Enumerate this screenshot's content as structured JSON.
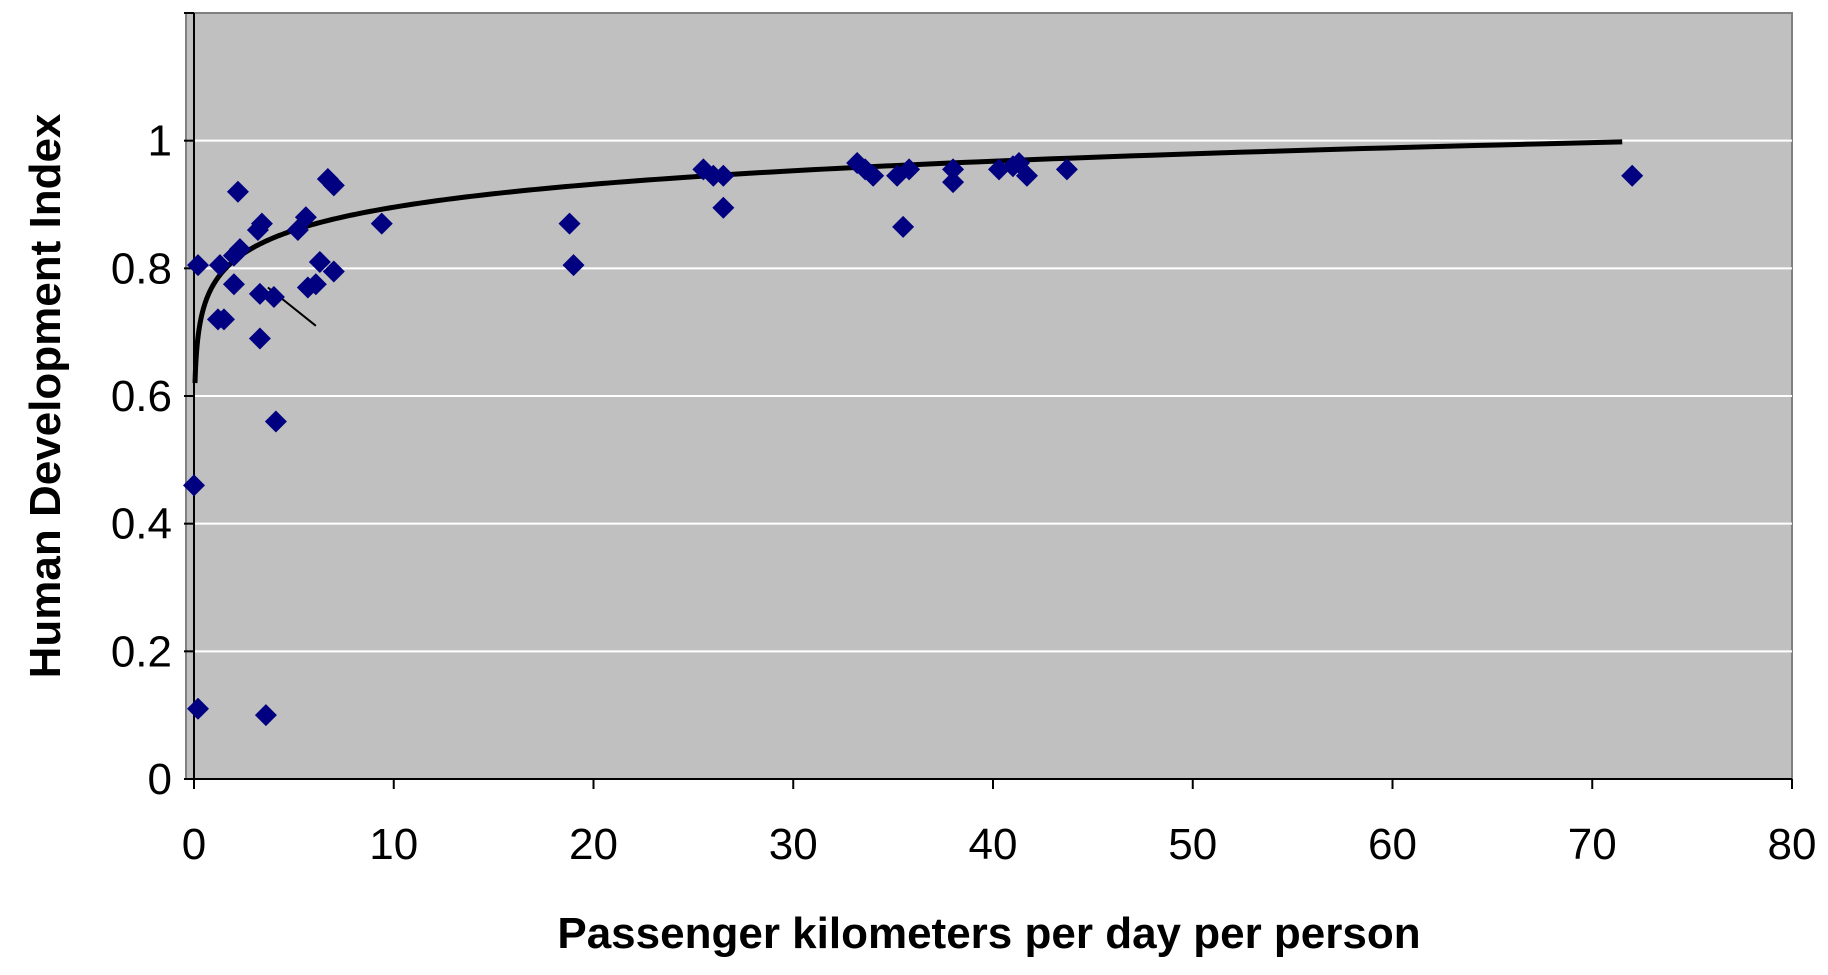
{
  "chart_data": {
    "type": "scatter",
    "title": "",
    "xlabel": "Passenger kilometers per day per person",
    "ylabel": "Human Development Index",
    "xlim": [
      0,
      80
    ],
    "ylim": [
      0,
      1.2
    ],
    "x_ticks": [
      0,
      10,
      20,
      30,
      40,
      50,
      60,
      70,
      80
    ],
    "y_ticks": [
      0,
      0.2,
      0.4,
      0.6,
      0.8,
      1
    ],
    "x_tick_labels": [
      "0",
      "10",
      "20",
      "30",
      "40",
      "50",
      "60",
      "70",
      "80"
    ],
    "y_tick_labels": [
      "0",
      "0.2",
      "0.4",
      "0.6",
      "0.8",
      "1"
    ],
    "grid": "horizontal",
    "legend": "none",
    "colors": {
      "plot_background": "#c0c0c0",
      "marker": "#000080",
      "trend_line": "#000000",
      "grid": "#ffffff"
    },
    "series": [
      {
        "marker": "diamond",
        "points": [
          [
            0.0,
            0.46
          ],
          [
            0.2,
            0.11
          ],
          [
            0.2,
            0.805
          ],
          [
            1.2,
            0.72
          ],
          [
            1.3,
            0.805
          ],
          [
            1.5,
            0.72
          ],
          [
            2.0,
            0.82
          ],
          [
            2.0,
            0.775
          ],
          [
            2.2,
            0.92
          ],
          [
            2.3,
            0.83
          ],
          [
            3.2,
            0.86
          ],
          [
            3.4,
            0.87
          ],
          [
            3.3,
            0.76
          ],
          [
            3.3,
            0.69
          ],
          [
            3.6,
            0.1
          ],
          [
            4.0,
            0.755
          ],
          [
            4.1,
            0.56
          ],
          [
            5.2,
            0.86
          ],
          [
            5.6,
            0.88
          ],
          [
            5.7,
            0.77
          ],
          [
            6.1,
            0.775
          ],
          [
            6.3,
            0.81
          ],
          [
            6.7,
            0.94
          ],
          [
            7.0,
            0.93
          ],
          [
            7.0,
            0.795
          ],
          [
            9.4,
            0.87
          ],
          [
            18.8,
            0.87
          ],
          [
            19.0,
            0.805
          ],
          [
            25.5,
            0.955
          ],
          [
            26.0,
            0.945
          ],
          [
            26.5,
            0.945
          ],
          [
            26.5,
            0.895
          ],
          [
            33.2,
            0.965
          ],
          [
            33.6,
            0.955
          ],
          [
            34.0,
            0.945
          ],
          [
            35.2,
            0.945
          ],
          [
            35.5,
            0.865
          ],
          [
            35.8,
            0.955
          ],
          [
            38.0,
            0.955
          ],
          [
            38.0,
            0.935
          ],
          [
            40.3,
            0.955
          ],
          [
            41.0,
            0.96
          ],
          [
            41.3,
            0.965
          ],
          [
            41.7,
            0.945
          ],
          [
            43.7,
            0.955
          ],
          [
            72.0,
            0.945
          ]
        ]
      }
    ],
    "trend_line": {
      "type": "logarithmic",
      "x_range": [
        0.05,
        71.5
      ],
      "a": 0.776,
      "b": 0.052
    },
    "annotation_line": {
      "from": [
        3.7,
        0.77
      ],
      "to": [
        6.1,
        0.71
      ]
    }
  }
}
